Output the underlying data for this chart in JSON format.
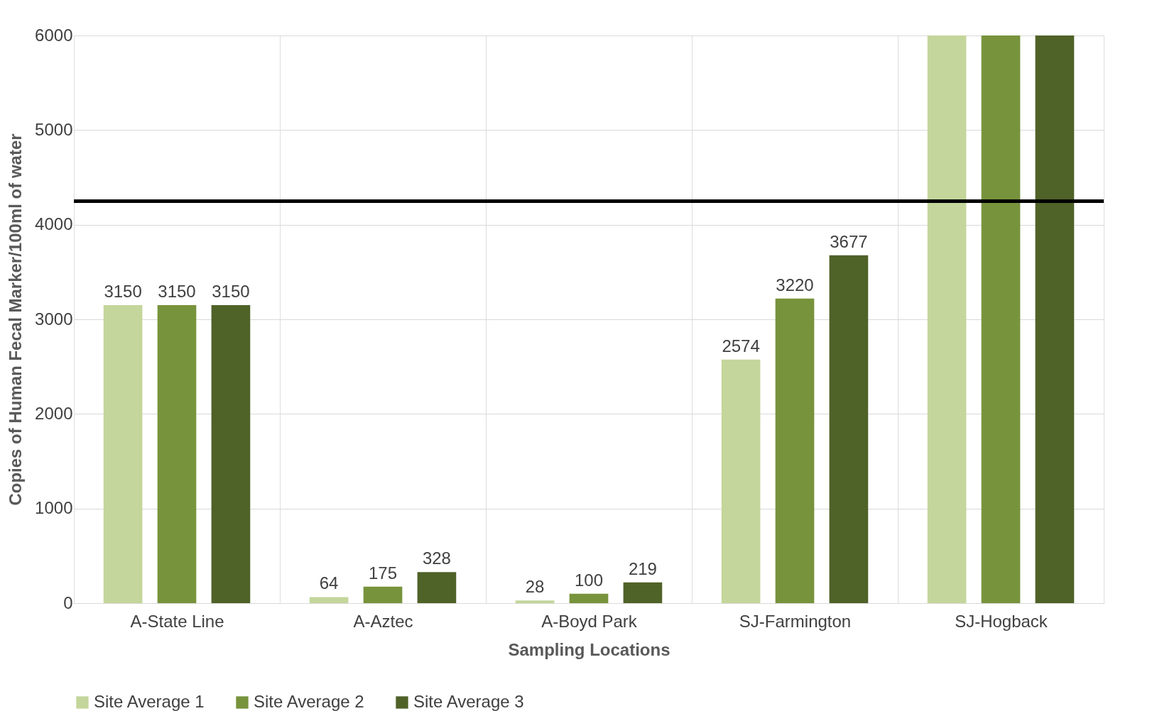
{
  "chart_data": {
    "type": "bar",
    "xlabel": "Sampling Locations",
    "ylabel": "Copies of Human Fecal Marker/100ml of water",
    "categories": [
      "A-State Line",
      "A-Aztec",
      "A-Boyd Park",
      "SJ-Farmington",
      "SJ-Hogback"
    ],
    "series": [
      {
        "name": "Site Average 1",
        "color": "#c4d69b",
        "values": [
          3150,
          64,
          28,
          2574,
          6000
        ],
        "value_labels": [
          "3150",
          "64",
          "28",
          "2574",
          null
        ]
      },
      {
        "name": "Site Average 2",
        "color": "#77933c",
        "values": [
          3150,
          175,
          100,
          3220,
          6000
        ],
        "value_labels": [
          "3150",
          "175",
          "100",
          "3220",
          null
        ]
      },
      {
        "name": "Site Average 3",
        "color": "#4f6228",
        "values": [
          3150,
          328,
          219,
          3677,
          6000
        ],
        "value_labels": [
          "3150",
          "328",
          "219",
          "3677",
          null
        ]
      }
    ],
    "ylim": [
      0,
      6000
    ],
    "yticks": [
      0,
      1000,
      2000,
      3000,
      4000,
      5000,
      6000
    ],
    "grid": true,
    "legend": "bottom",
    "ref_lines": [
      {
        "axis": "y",
        "value": 4250,
        "color": "#000000"
      }
    ]
  }
}
